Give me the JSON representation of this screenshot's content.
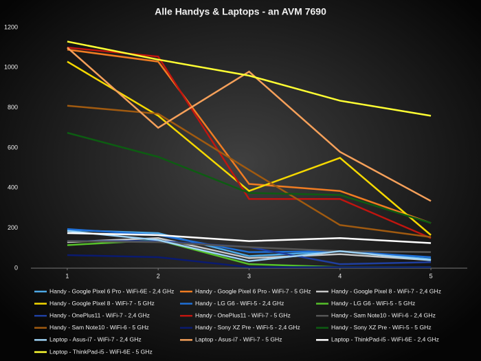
{
  "chart_data": {
    "type": "line",
    "title": "Alle Handys & Laptops - an AVM 7690",
    "x": [
      1,
      2,
      3,
      4,
      5
    ],
    "xlim": [
      0.6,
      5.4
    ],
    "xticks": [
      1,
      2,
      3,
      4,
      5
    ],
    "ylim": [
      0,
      1200
    ],
    "yticks": [
      0,
      200,
      400,
      600,
      800,
      1000,
      1200
    ],
    "grid": false,
    "legend": "bottom",
    "series": [
      {
        "name": "Handy - Google Pixel 6 Pro - WiFi-6E - 2,4 GHz",
        "color": "#4ea9e6",
        "values": [
          190,
          175,
          60,
          85,
          45
        ]
      },
      {
        "name": "Handy - Google Pixel 6 Pro - WiFi-7 - 5 GHz",
        "color": "#f07c22",
        "values": [
          1090,
          1030,
          420,
          385,
          225
        ]
      },
      {
        "name": "Handy - Google Pixel 8 - WiFi-7 - 2,4 GHz",
        "color": "#c8c8c8",
        "values": [
          130,
          150,
          50,
          70,
          40
        ]
      },
      {
        "name": "Handy - Google Pixel 8 - WiFi-7 - 5 GHz",
        "color": "#f5d800",
        "values": [
          1030,
          760,
          385,
          550,
          165
        ]
      },
      {
        "name": "Handy - LG G6 - WiFi-5 - 2,4 GHz",
        "color": "#1f6fd6",
        "values": [
          195,
          165,
          80,
          85,
          55
        ]
      },
      {
        "name": "Handy - LG G6 - WiFi-5 - 5 GHz",
        "color": "#56c12a",
        "values": [
          115,
          140,
          20,
          5,
          5
        ]
      },
      {
        "name": "Handy - OnePlus11 - WiFi-7 - 2,4 GHz",
        "color": "#1f3fa0",
        "values": [
          135,
          135,
          105,
          20,
          30
        ]
      },
      {
        "name": "Handy - OnePlus11 - WiFi-7 - 5 GHz",
        "color": "#c0150f",
        "values": [
          1100,
          1055,
          345,
          345,
          150
        ]
      },
      {
        "name": "Handy - Sam Note10 - WiFi-6 - 2,4 GHz",
        "color": "#555555",
        "values": [
          135,
          130,
          105,
          85,
          80
        ]
      },
      {
        "name": "Handy - Sam Note10 - WiFi-6 - 5 GHz",
        "color": "#a05a10",
        "values": [
          810,
          770,
          490,
          215,
          155
        ]
      },
      {
        "name": "Handy - Sony XZ Pre - WiFi-5 - 2,4 GHz",
        "color": "#0a1a70",
        "values": [
          65,
          55,
          5,
          5,
          5
        ]
      },
      {
        "name": "Handy - Sony XZ Pre - WiFi-5 - 5 GHz",
        "color": "#0d5c12",
        "values": [
          675,
          555,
          375,
          365,
          225
        ]
      },
      {
        "name": "Laptop - Asus-i7 - WiFi-7 - 2,4 GHz",
        "color": "#9fd3f5",
        "values": [
          185,
          140,
          35,
          85,
          40
        ]
      },
      {
        "name": "Laptop - Asus-i7 - WiFi-7 - 5 GHz",
        "color": "#f5a05a",
        "values": [
          1100,
          700,
          980,
          580,
          335
        ]
      },
      {
        "name": "Laptop - ThinkPad-i5 - WiFi-6E - 2,4 GHz",
        "color": "#ffffff",
        "values": [
          175,
          165,
          135,
          150,
          125
        ]
      },
      {
        "name": "Laptop - ThinkPad-i5 - WiFi-6E - 5 GHz",
        "color": "#ffff33",
        "values": [
          1130,
          1040,
          960,
          835,
          760
        ]
      }
    ]
  }
}
